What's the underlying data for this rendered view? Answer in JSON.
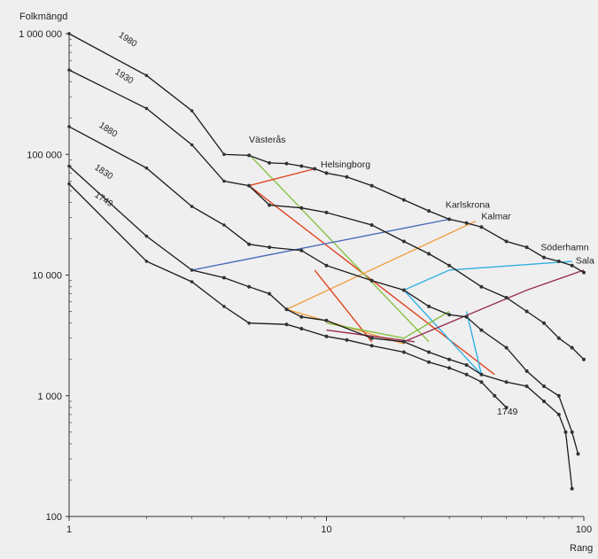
{
  "chart_data": {
    "type": "line",
    "ylabel": "Folkmängd",
    "xlabel": "Rang",
    "x_scale": "log",
    "y_scale": "log",
    "xlim": [
      1,
      100
    ],
    "ylim": [
      100,
      1000000
    ],
    "x_ticks": [
      {
        "value": 1,
        "label": "1"
      },
      {
        "value": 10,
        "label": "10"
      },
      {
        "value": 100,
        "label": "100"
      }
    ],
    "y_ticks": [
      {
        "value": 1000000,
        "label": "1 000 000"
      },
      {
        "value": 100000,
        "label": "100 000"
      },
      {
        "value": 10000,
        "label": "10 000"
      },
      {
        "value": 1000,
        "label": "1 000"
      },
      {
        "value": 100,
        "label": "100"
      }
    ],
    "grid": false,
    "series": [
      {
        "name": "1980",
        "color": "#1a1a1a",
        "dots_from": 5,
        "points": [
          [
            1,
            1000000
          ],
          [
            2,
            450000
          ],
          [
            3,
            230000
          ],
          [
            4,
            100000
          ],
          [
            5,
            98000
          ],
          [
            6,
            85000
          ],
          [
            7,
            84000
          ],
          [
            8,
            80000
          ],
          [
            9,
            76000
          ],
          [
            10,
            70000
          ],
          [
            12,
            65000
          ],
          [
            15,
            55000
          ],
          [
            20,
            42000
          ],
          [
            25,
            34000
          ],
          [
            30,
            29000
          ],
          [
            35,
            27000
          ],
          [
            40,
            25000
          ],
          [
            50,
            19000
          ],
          [
            60,
            17000
          ],
          [
            70,
            14000
          ],
          [
            80,
            13000
          ],
          [
            90,
            12000
          ],
          [
            100,
            10500
          ]
        ]
      },
      {
        "name": "1930",
        "color": "#1a1a1a",
        "dots_from": 5,
        "points": [
          [
            1,
            500000
          ],
          [
            2,
            240000
          ],
          [
            3,
            120000
          ],
          [
            4,
            60000
          ],
          [
            5,
            55000
          ],
          [
            6,
            38000
          ],
          [
            8,
            36000
          ],
          [
            10,
            33000
          ],
          [
            15,
            26000
          ],
          [
            20,
            19000
          ],
          [
            25,
            15000
          ],
          [
            30,
            12000
          ],
          [
            40,
            8000
          ],
          [
            50,
            6500
          ],
          [
            60,
            5000
          ],
          [
            70,
            4000
          ],
          [
            80,
            3000
          ],
          [
            90,
            2500
          ],
          [
            100,
            2000
          ]
        ]
      },
      {
        "name": "1880",
        "color": "#1a1a1a",
        "dots_from": 5,
        "points": [
          [
            1,
            170000
          ],
          [
            2,
            77000
          ],
          [
            3,
            37000
          ],
          [
            4,
            26000
          ],
          [
            5,
            18000
          ],
          [
            6,
            17000
          ],
          [
            8,
            16000
          ],
          [
            10,
            12000
          ],
          [
            15,
            9000
          ],
          [
            20,
            7500
          ],
          [
            25,
            5500
          ],
          [
            30,
            4700
          ],
          [
            35,
            4500
          ],
          [
            40,
            3500
          ],
          [
            50,
            2500
          ],
          [
            60,
            1600
          ],
          [
            70,
            1200
          ],
          [
            80,
            1000
          ],
          [
            90,
            500
          ],
          [
            95,
            330
          ]
        ]
      },
      {
        "name": "1830",
        "color": "#1a1a1a",
        "dots_from": 4,
        "points": [
          [
            1,
            80000
          ],
          [
            2,
            21000
          ],
          [
            3,
            11000
          ],
          [
            4,
            9500
          ],
          [
            5,
            8000
          ],
          [
            6,
            7000
          ],
          [
            7,
            5200
          ],
          [
            8,
            4500
          ],
          [
            10,
            4200
          ],
          [
            15,
            3000
          ],
          [
            20,
            2800
          ],
          [
            25,
            2300
          ],
          [
            30,
            2000
          ],
          [
            35,
            1800
          ],
          [
            40,
            1500
          ],
          [
            50,
            1300
          ],
          [
            60,
            1200
          ],
          [
            70,
            900
          ],
          [
            80,
            700
          ],
          [
            85,
            500
          ],
          [
            90,
            170
          ]
        ]
      },
      {
        "name": "1749",
        "color": "#1a1a1a",
        "dots_from": 7,
        "points": [
          [
            1,
            57000
          ],
          [
            2,
            13000
          ],
          [
            3,
            8800
          ],
          [
            4,
            5500
          ],
          [
            5,
            4000
          ],
          [
            7,
            3900
          ],
          [
            8,
            3600
          ],
          [
            10,
            3100
          ],
          [
            12,
            2900
          ],
          [
            15,
            2600
          ],
          [
            20,
            2300
          ],
          [
            25,
            1900
          ],
          [
            30,
            1700
          ],
          [
            35,
            1500
          ],
          [
            40,
            1300
          ],
          [
            45,
            1000
          ],
          [
            50,
            800
          ]
        ]
      }
    ],
    "series_labels": [
      {
        "text": "1980",
        "x": 1.55,
        "y": 950000
      },
      {
        "text": "1930",
        "x": 1.5,
        "y": 470000
      },
      {
        "text": "1880",
        "x": 1.3,
        "y": 170000
      },
      {
        "text": "1830",
        "x": 1.25,
        "y": 76000
      },
      {
        "text": "1749",
        "x": 1.25,
        "y": 45000
      }
    ],
    "city_links": [
      {
        "name": "Västerås",
        "color": "#e04420",
        "points": [
          [
            5,
            55000
          ],
          [
            45,
            1500
          ]
        ]
      },
      {
        "name": "Västerås",
        "color": "#8ac040",
        "points": [
          [
            5,
            100000
          ],
          [
            25,
            2800
          ]
        ]
      },
      {
        "name": "Helsingborg",
        "color": "#e04420",
        "points": [
          [
            5,
            55000
          ],
          [
            9,
            76000
          ]
        ]
      },
      {
        "name": "Karlskrona",
        "color": "#4a6bb8",
        "points": [
          [
            3,
            11000
          ],
          [
            30,
            29000
          ]
        ]
      },
      {
        "name": "Kalmar",
        "color": "#f0a040",
        "points": [
          [
            7,
            5200
          ],
          [
            38,
            28000
          ]
        ]
      },
      {
        "name": "Söderhamn",
        "color": "#30b0e0",
        "points": [
          [
            20,
            7500
          ],
          [
            40,
            1500
          ],
          [
            35,
            5000
          ]
        ]
      },
      {
        "name": "Söderhamn",
        "color": "#30b0e0",
        "points": [
          [
            20,
            7500
          ],
          [
            30,
            11000
          ],
          [
            90,
            13000
          ]
        ]
      },
      {
        "name": "Sala",
        "color": "#9a3050",
        "points": [
          [
            20,
            2800
          ],
          [
            60,
            7500
          ],
          [
            100,
            11000
          ]
        ]
      },
      {
        "name": "",
        "color": "#f0a040",
        "points": [
          [
            7,
            5200
          ],
          [
            20,
            2700
          ]
        ]
      },
      {
        "name": "",
        "color": "#e04420",
        "points": [
          [
            9,
            11000
          ],
          [
            15,
            2800
          ]
        ]
      },
      {
        "name": "",
        "color": "#8ac040",
        "points": [
          [
            10,
            4000
          ],
          [
            20,
            3000
          ],
          [
            30,
            5000
          ]
        ]
      },
      {
        "name": "",
        "color": "#9a3050",
        "points": [
          [
            10,
            3500
          ],
          [
            22,
            2800
          ]
        ]
      }
    ],
    "annotations": [
      {
        "text": "Västerås",
        "x": 5,
        "y": 125000
      },
      {
        "text": "Helsingborg",
        "x": 9.5,
        "y": 78000
      },
      {
        "text": "Karlskrona",
        "x": 29,
        "y": 36000
      },
      {
        "text": "Kalmar",
        "x": 40,
        "y": 29000
      },
      {
        "text": "Söderhamn",
        "x": 68,
        "y": 16000
      },
      {
        "text": "Sala",
        "x": 93,
        "y": 12500
      },
      {
        "text": "1749",
        "x": 46,
        "y": 700
      }
    ]
  }
}
